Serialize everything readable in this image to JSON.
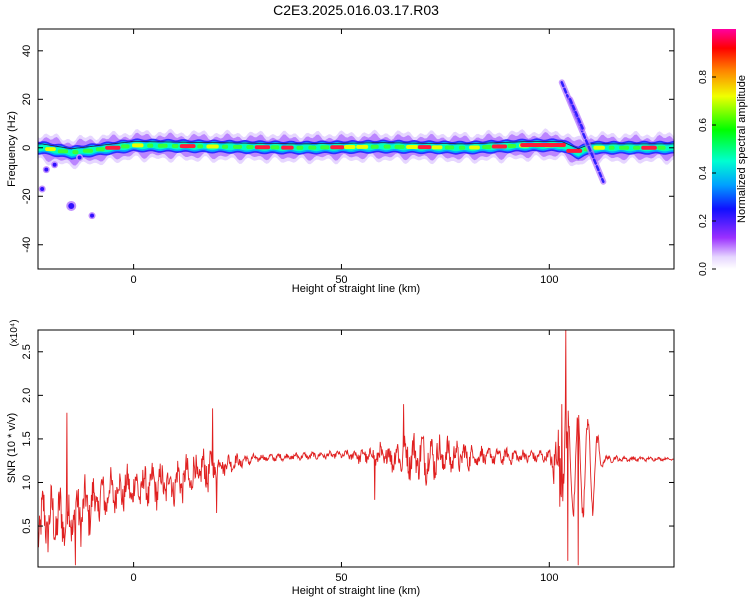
{
  "title": "C2E3.2025.016.03.17.R03",
  "chart_data": [
    {
      "type": "heatmap",
      "xlabel": "Height of straight line (km)",
      "ylabel": "Frequency (Hz)",
      "xlim": [
        -23,
        130
      ],
      "ylim": [
        -50,
        49
      ],
      "xticks": [
        0,
        50,
        100
      ],
      "yticks": [
        -40,
        -20,
        0,
        20,
        40
      ],
      "colorbar": {
        "label": "Normalized spectral amplitude",
        "range": [
          0,
          1
        ],
        "ticks": [
          0.0,
          0.2,
          0.4,
          0.6,
          0.8
        ]
      },
      "ridge": [
        {
          "x": -22,
          "y": 0
        },
        {
          "x": -15,
          "y": -2
        },
        {
          "x": -10,
          "y": -1
        },
        {
          "x": 0,
          "y": 1
        },
        {
          "x": 20,
          "y": 0.5
        },
        {
          "x": 40,
          "y": 0
        },
        {
          "x": 60,
          "y": 0.5
        },
        {
          "x": 80,
          "y": 0
        },
        {
          "x": 95,
          "y": 1
        },
        {
          "x": 103,
          "y": 1
        },
        {
          "x": 107,
          "y": -2
        },
        {
          "x": 110,
          "y": 0
        },
        {
          "x": 130,
          "y": 0
        }
      ],
      "streaks": [
        {
          "x": [
            103,
            113
          ],
          "y": [
            27,
            -14
          ]
        },
        {
          "x": [
            105,
            108
          ],
          "y": [
            20,
            8
          ]
        }
      ],
      "spots": [
        {
          "x": -15,
          "y": -24
        },
        {
          "x": -21,
          "y": -9
        },
        {
          "x": -22,
          "y": -17
        },
        {
          "x": -19,
          "y": -7
        },
        {
          "x": -10,
          "y": -28
        },
        {
          "x": -13,
          "y": -4
        }
      ]
    },
    {
      "type": "line",
      "xlabel": "Height of straight line (km)",
      "ylabel": "SNR (10 * v/v)",
      "y_multiplier": "(x10⁴)",
      "xlim": [
        -23,
        130
      ],
      "ylim": [
        0.03,
        2.75
      ],
      "xticks": [
        0,
        50,
        100
      ],
      "yticks": [
        0.5,
        1.0,
        1.5,
        2.0,
        2.5
      ],
      "series": [
        {
          "color": "#e02020",
          "envelope": [
            {
              "x": -23,
              "mean": 0.55,
              "amp": 0.45
            },
            {
              "x": -15,
              "mean": 0.6,
              "amp": 0.45
            },
            {
              "x": -5,
              "mean": 0.9,
              "amp": 0.3
            },
            {
              "x": 10,
              "mean": 1.0,
              "amp": 0.3
            },
            {
              "x": 18,
              "mean": 1.15,
              "amp": 0.3
            },
            {
              "x": 21,
              "mean": 1.2,
              "amp": 0.15
            },
            {
              "x": 30,
              "mean": 1.28,
              "amp": 0.05
            },
            {
              "x": 50,
              "mean": 1.32,
              "amp": 0.05
            },
            {
              "x": 58,
              "mean": 1.3,
              "amp": 0.15
            },
            {
              "x": 70,
              "mean": 1.3,
              "amp": 0.35
            },
            {
              "x": 85,
              "mean": 1.3,
              "amp": 0.12
            },
            {
              "x": 100,
              "mean": 1.3,
              "amp": 0.08
            },
            {
              "x": 102,
              "mean": 1.2,
              "amp": 0.65
            },
            {
              "x": 110,
              "mean": 1.2,
              "amp": 0.7
            },
            {
              "x": 113,
              "mean": 1.27,
              "amp": 0.05
            },
            {
              "x": 130,
              "mean": 1.27,
              "amp": 0.015
            }
          ],
          "spikes": [
            {
              "x": -16,
              "y": 1.8
            },
            {
              "x": -14,
              "y": 0.05
            },
            {
              "x": 19,
              "y": 1.85
            },
            {
              "x": 20,
              "y": 0.65
            },
            {
              "x": 58,
              "y": 0.8
            },
            {
              "x": 65,
              "y": 1.9
            },
            {
              "x": 104,
              "y": 2.75
            },
            {
              "x": 104.5,
              "y": 0.1
            },
            {
              "x": 107,
              "y": 0.05
            },
            {
              "x": 103,
              "y": 1.9
            }
          ]
        }
      ]
    }
  ]
}
